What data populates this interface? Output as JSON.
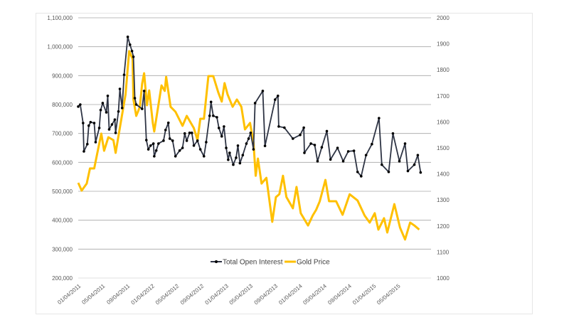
{
  "chart_data": {
    "type": "line",
    "title": "",
    "grid": true,
    "legend_position": "bottom-center",
    "x_tick_labels": [
      "01/04/2011",
      "05/04/2011",
      "09/04/2011",
      "01/04/2012",
      "05/04/2012",
      "09/04/2012",
      "01/04/2013",
      "05/04/2013",
      "09/04/2013",
      "01/04/2014",
      "05/04/2014",
      "09/04/2014",
      "01/04/2015",
      "05/04/2015"
    ],
    "x_ticks": [
      "2011-01-04",
      "2011-05-04",
      "2011-09-04",
      "2012-01-04",
      "2012-05-04",
      "2012-09-04",
      "2013-01-04",
      "2013-05-04",
      "2013-09-04",
      "2014-01-04",
      "2014-05-04",
      "2014-09-04",
      "2015-01-04",
      "2015-05-04"
    ],
    "y_left": {
      "range": [
        200000,
        1100000
      ],
      "tick_labels": [
        "200,000",
        "300,000",
        "400,000",
        "500,000",
        "600,000",
        "700,000",
        "800,000",
        "900,000",
        "1,000,000",
        "1,100,000"
      ]
    },
    "y_right": {
      "range": [
        1000,
        2000
      ],
      "tick_labels": [
        "1000",
        "1100",
        "1200",
        "1300",
        "1400",
        "1500",
        "1600",
        "1700",
        "1800",
        "1900",
        "2000"
      ]
    },
    "series": [
      {
        "name": "Total Open Interest",
        "axis": "left",
        "color": "#2e3444",
        "marker": "circle",
        "points": [
          [
            "2011-01-04",
            793000
          ],
          [
            "2011-01-14",
            800000
          ],
          [
            "2011-01-28",
            736000
          ],
          [
            "2011-02-01",
            638000
          ],
          [
            "2011-02-18",
            663000
          ],
          [
            "2011-02-25",
            727000
          ],
          [
            "2011-03-06",
            739000
          ],
          [
            "2011-03-24",
            736000
          ],
          [
            "2011-03-31",
            670000
          ],
          [
            "2011-04-18",
            719000
          ],
          [
            "2011-04-25",
            781000
          ],
          [
            "2011-05-05",
            805000
          ],
          [
            "2011-05-23",
            773000
          ],
          [
            "2011-05-30",
            830000
          ],
          [
            "2011-06-06",
            714000
          ],
          [
            "2011-06-20",
            731000
          ],
          [
            "2011-07-04",
            748000
          ],
          [
            "2011-07-08",
            702000
          ],
          [
            "2011-07-22",
            776000
          ],
          [
            "2011-07-29",
            854000
          ],
          [
            "2011-08-09",
            788000
          ],
          [
            "2011-08-19",
            903000
          ],
          [
            "2011-09-06",
            1034000
          ],
          [
            "2011-09-17",
            1007000
          ],
          [
            "2011-09-27",
            985000
          ],
          [
            "2011-10-04",
            965000
          ],
          [
            "2011-10-11",
            822000
          ],
          [
            "2011-10-18",
            800000
          ],
          [
            "2011-11-16",
            785000
          ],
          [
            "2011-11-26",
            847000
          ],
          [
            "2011-12-07",
            677000
          ],
          [
            "2011-12-17",
            645000
          ],
          [
            "2011-12-28",
            658000
          ],
          [
            "2012-01-11",
            665000
          ],
          [
            "2012-01-15",
            621000
          ],
          [
            "2012-01-25",
            641000
          ],
          [
            "2012-02-05",
            665000
          ],
          [
            "2012-03-01",
            675000
          ],
          [
            "2012-03-11",
            712000
          ],
          [
            "2012-03-25",
            737000
          ],
          [
            "2012-04-01",
            682000
          ],
          [
            "2012-04-15",
            675000
          ],
          [
            "2012-04-29",
            621000
          ],
          [
            "2012-05-20",
            641000
          ],
          [
            "2012-06-03",
            650000
          ],
          [
            "2012-06-14",
            700000
          ],
          [
            "2012-06-24",
            675000
          ],
          [
            "2012-07-08",
            702000
          ],
          [
            "2012-07-19",
            702000
          ],
          [
            "2012-07-29",
            658000
          ],
          [
            "2012-08-16",
            675000
          ],
          [
            "2012-08-30",
            645000
          ],
          [
            "2012-09-17",
            621000
          ],
          [
            "2012-09-28",
            670000
          ],
          [
            "2012-10-15",
            761000
          ],
          [
            "2012-10-22",
            809000
          ],
          [
            "2012-11-02",
            761000
          ],
          [
            "2012-11-20",
            756000
          ],
          [
            "2012-11-30",
            719000
          ],
          [
            "2012-12-14",
            690000
          ],
          [
            "2012-12-25",
            724000
          ],
          [
            "2013-01-05",
            650000
          ],
          [
            "2013-01-15",
            609000
          ],
          [
            "2013-01-22",
            633000
          ],
          [
            "2013-02-09",
            592000
          ],
          [
            "2013-02-23",
            616000
          ],
          [
            "2013-03-04",
            658000
          ],
          [
            "2013-03-14",
            597000
          ],
          [
            "2013-03-28",
            625000
          ],
          [
            "2013-04-15",
            665000
          ],
          [
            "2013-04-26",
            682000
          ],
          [
            "2013-05-06",
            702000
          ],
          [
            "2013-05-20",
            645000
          ],
          [
            "2013-05-28",
            805000
          ],
          [
            "2013-07-05",
            847000
          ],
          [
            "2013-07-16",
            657000
          ],
          [
            "2013-09-04",
            817000
          ],
          [
            "2013-09-18",
            830000
          ],
          [
            "2013-09-22",
            724000
          ],
          [
            "2013-10-20",
            720000
          ],
          [
            "2013-12-01",
            682000
          ],
          [
            "2014-01-06",
            695000
          ],
          [
            "2014-01-24",
            720000
          ],
          [
            "2014-01-27",
            633000
          ],
          [
            "2014-02-28",
            665000
          ],
          [
            "2014-03-19",
            660000
          ],
          [
            "2014-04-02",
            604000
          ],
          [
            "2014-04-23",
            652000
          ],
          [
            "2014-05-18",
            708000
          ],
          [
            "2014-06-05",
            610000
          ],
          [
            "2014-07-10",
            650000
          ],
          [
            "2014-08-07",
            604000
          ],
          [
            "2014-09-01",
            638000
          ],
          [
            "2014-09-29",
            640000
          ],
          [
            "2014-10-17",
            567000
          ],
          [
            "2014-11-04",
            552000
          ],
          [
            "2014-11-28",
            625000
          ],
          [
            "2014-12-27",
            663000
          ],
          [
            "2015-01-31",
            753000
          ],
          [
            "2015-02-14",
            592000
          ],
          [
            "2015-03-20",
            567000
          ],
          [
            "2015-04-10",
            700000
          ],
          [
            "2015-05-12",
            604000
          ],
          [
            "2015-06-09",
            665000
          ],
          [
            "2015-06-23",
            570000
          ],
          [
            "2015-07-25",
            592000
          ],
          [
            "2015-08-11",
            625000
          ],
          [
            "2015-08-25",
            565000
          ]
        ]
      },
      {
        "name": "Gold Price",
        "axis": "right",
        "color": "#ffc000",
        "marker": "none",
        "points": [
          [
            "2011-01-04",
            1366
          ],
          [
            "2011-01-21",
            1336
          ],
          [
            "2011-02-15",
            1363
          ],
          [
            "2011-03-03",
            1421
          ],
          [
            "2011-03-24",
            1421
          ],
          [
            "2011-04-07",
            1475
          ],
          [
            "2011-04-28",
            1555
          ],
          [
            "2011-05-12",
            1489
          ],
          [
            "2011-06-02",
            1541
          ],
          [
            "2011-06-27",
            1530
          ],
          [
            "2011-07-08",
            1481
          ],
          [
            "2011-08-02",
            1596
          ],
          [
            "2011-08-26",
            1705
          ],
          [
            "2011-09-13",
            1872
          ],
          [
            "2011-09-30",
            1842
          ],
          [
            "2011-10-04",
            1686
          ],
          [
            "2011-10-18",
            1623
          ],
          [
            "2011-11-05",
            1658
          ],
          [
            "2011-11-16",
            1746
          ],
          [
            "2011-11-26",
            1787
          ],
          [
            "2011-12-10",
            1664
          ],
          [
            "2011-12-21",
            1721
          ],
          [
            "2012-01-08",
            1596
          ],
          [
            "2012-01-15",
            1563
          ],
          [
            "2012-02-20",
            1740
          ],
          [
            "2012-03-07",
            1719
          ],
          [
            "2012-03-14",
            1773
          ],
          [
            "2012-04-05",
            1658
          ],
          [
            "2012-04-29",
            1639
          ],
          [
            "2012-06-03",
            1585
          ],
          [
            "2012-06-24",
            1623
          ],
          [
            "2012-07-29",
            1576
          ],
          [
            "2012-08-16",
            1530
          ],
          [
            "2012-08-30",
            1612
          ],
          [
            "2012-09-17",
            1612
          ],
          [
            "2012-10-09",
            1776
          ],
          [
            "2012-11-02",
            1776
          ],
          [
            "2012-11-27",
            1713
          ],
          [
            "2012-12-14",
            1678
          ],
          [
            "2012-12-28",
            1749
          ],
          [
            "2013-01-12",
            1705
          ],
          [
            "2013-02-06",
            1658
          ],
          [
            "2013-02-27",
            1686
          ],
          [
            "2013-03-21",
            1658
          ],
          [
            "2013-04-08",
            1571
          ],
          [
            "2013-05-03",
            1596
          ],
          [
            "2013-05-20",
            1522
          ],
          [
            "2013-05-31",
            1393
          ],
          [
            "2013-06-11",
            1459
          ],
          [
            "2013-06-29",
            1363
          ],
          [
            "2013-07-23",
            1385
          ],
          [
            "2013-08-21",
            1216
          ],
          [
            "2013-09-08",
            1311
          ],
          [
            "2013-09-25",
            1322
          ],
          [
            "2013-10-13",
            1393
          ],
          [
            "2013-10-30",
            1311
          ],
          [
            "2013-12-01",
            1268
          ],
          [
            "2013-12-19",
            1350
          ],
          [
            "2014-01-09",
            1249
          ],
          [
            "2014-02-14",
            1202
          ],
          [
            "2014-03-09",
            1240
          ],
          [
            "2014-03-26",
            1262
          ],
          [
            "2014-04-13",
            1295
          ],
          [
            "2014-05-11",
            1377
          ],
          [
            "2014-05-29",
            1295
          ],
          [
            "2014-07-03",
            1295
          ],
          [
            "2014-08-04",
            1243
          ],
          [
            "2014-09-08",
            1322
          ],
          [
            "2014-10-17",
            1298
          ],
          [
            "2014-11-21",
            1240
          ],
          [
            "2014-12-16",
            1213
          ],
          [
            "2015-01-10",
            1249
          ],
          [
            "2015-01-28",
            1186
          ],
          [
            "2015-02-25",
            1230
          ],
          [
            "2015-03-13",
            1175
          ],
          [
            "2015-04-17",
            1284
          ],
          [
            "2015-05-15",
            1194
          ],
          [
            "2015-06-09",
            1148
          ],
          [
            "2015-07-04",
            1213
          ],
          [
            "2015-07-25",
            1202
          ],
          [
            "2015-08-18",
            1186
          ]
        ]
      }
    ]
  }
}
